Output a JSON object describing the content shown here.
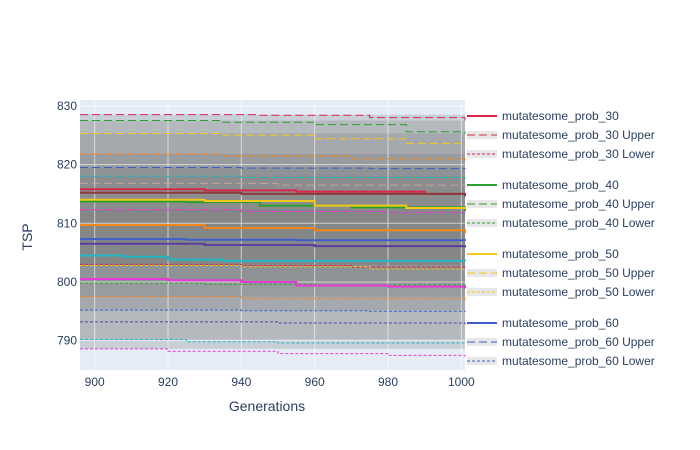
{
  "chart_data": {
    "type": "line",
    "xlabel": "Generations",
    "ylabel": "TSP",
    "xlim": [
      896,
      1001
    ],
    "ylim": [
      785,
      831
    ],
    "x_ticks": [
      900,
      920,
      940,
      960,
      980,
      1000
    ],
    "y_ticks": [
      790,
      800,
      810,
      820,
      830
    ],
    "x": [
      896,
      1001
    ],
    "grid": true,
    "legend_position": "right",
    "plot_background": "#e5ecf6",
    "band_fill": "rgba(120,120,120,0.25)",
    "series": [
      {
        "name": "mutatesome_prob_30",
        "color": "#d62748",
        "dash": "solid",
        "show_in_legend": true,
        "points": [
          [
            896,
            815.8
          ],
          [
            930,
            815.6
          ],
          [
            955,
            815.4
          ],
          [
            990,
            815.0
          ],
          [
            1001,
            814.9
          ]
        ]
      },
      {
        "name": "mutatesome_prob_30 Upper",
        "color": "#d62748",
        "dash": "dashed",
        "show_in_legend": true,
        "points": [
          [
            896,
            828.5
          ],
          [
            945,
            828.4
          ],
          [
            975,
            828.0
          ],
          [
            1001,
            827.5
          ]
        ]
      },
      {
        "name": "mutatesome_prob_30 Lower",
        "color": "#d62748",
        "dash": "dotted",
        "show_in_legend": true,
        "points": [
          [
            896,
            803.0
          ],
          [
            940,
            802.8
          ],
          [
            970,
            802.5
          ],
          [
            1001,
            802.3
          ]
        ]
      },
      {
        "name": "mutatesome_prob_40",
        "color": "#2ca02c",
        "dash": "solid",
        "show_in_legend": true,
        "points": [
          [
            896,
            813.7
          ],
          [
            925,
            813.6
          ],
          [
            945,
            813.0
          ],
          [
            970,
            812.7
          ],
          [
            1001,
            812.1
          ]
        ]
      },
      {
        "name": "mutatesome_prob_40 Upper",
        "color": "#2ca02c",
        "dash": "dashed",
        "show_in_legend": true,
        "points": [
          [
            896,
            827.5
          ],
          [
            935,
            827.2
          ],
          [
            960,
            826.8
          ],
          [
            985,
            825.6
          ],
          [
            1001,
            825.2
          ]
        ]
      },
      {
        "name": "mutatesome_prob_40 Lower",
        "color": "#2ca02c",
        "dash": "dotted",
        "show_in_legend": true,
        "points": [
          [
            896,
            799.8
          ],
          [
            930,
            799.6
          ],
          [
            960,
            799.5
          ],
          [
            1001,
            799.0
          ]
        ]
      },
      {
        "name": "mutatesome_prob_50",
        "color": "#f2c81b",
        "dash": "solid",
        "show_in_legend": true,
        "points": [
          [
            896,
            814.0
          ],
          [
            930,
            813.8
          ],
          [
            960,
            813.0
          ],
          [
            985,
            812.6
          ],
          [
            1001,
            812.4
          ]
        ]
      },
      {
        "name": "mutatesome_prob_50 Upper",
        "color": "#f2c81b",
        "dash": "dashed",
        "show_in_legend": true,
        "points": [
          [
            896,
            825.3
          ],
          [
            935,
            825.0
          ],
          [
            960,
            824.4
          ],
          [
            985,
            823.6
          ],
          [
            1001,
            823.2
          ]
        ]
      },
      {
        "name": "mutatesome_prob_50 Lower",
        "color": "#f2c81b",
        "dash": "dotted",
        "show_in_legend": true,
        "points": [
          [
            896,
            802.8
          ],
          [
            940,
            802.6
          ],
          [
            975,
            802.2
          ],
          [
            1001,
            802.0
          ]
        ]
      },
      {
        "name": "mutatesome_prob_60",
        "color": "#3e5fcb",
        "dash": "solid",
        "show_in_legend": true,
        "points": [
          [
            896,
            807.3
          ],
          [
            925,
            807.2
          ],
          [
            955,
            807.1
          ],
          [
            1001,
            807.0
          ]
        ]
      },
      {
        "name": "mutatesome_prob_60 Upper",
        "color": "#3e5fcb",
        "dash": "dashed",
        "show_in_legend": true,
        "points": [
          [
            896,
            819.5
          ],
          [
            940,
            819.4
          ],
          [
            975,
            819.3
          ],
          [
            1001,
            819.2
          ]
        ]
      },
      {
        "name": "mutatesome_prob_60 Lower",
        "color": "#3e5fcb",
        "dash": "dotted",
        "show_in_legend": true,
        "points": [
          [
            896,
            795.2
          ],
          [
            940,
            795.1
          ],
          [
            975,
            795.0
          ],
          [
            1001,
            794.9
          ]
        ]
      },
      {
        "name": "",
        "color": "#f58518",
        "dash": "solid",
        "show_in_legend": false,
        "points": [
          [
            896,
            809.7
          ],
          [
            930,
            809.2
          ],
          [
            960,
            808.8
          ],
          [
            1001,
            808.3
          ]
        ]
      },
      {
        "name": "",
        "color": "#f58518",
        "dash": "dashed",
        "show_in_legend": false,
        "points": [
          [
            896,
            821.8
          ],
          [
            935,
            821.5
          ],
          [
            970,
            821.0
          ],
          [
            1001,
            820.7
          ]
        ]
      },
      {
        "name": "",
        "color": "#f58518",
        "dash": "dotted",
        "show_in_legend": false,
        "points": [
          [
            896,
            797.5
          ],
          [
            940,
            797.2
          ],
          [
            1001,
            796.9
          ]
        ]
      },
      {
        "name": "",
        "color": "#1fb8c4",
        "dash": "solid",
        "show_in_legend": false,
        "points": [
          [
            896,
            804.5
          ],
          [
            908,
            804.3
          ],
          [
            920,
            803.8
          ],
          [
            935,
            803.6
          ],
          [
            1001,
            803.5
          ]
        ]
      },
      {
        "name": "",
        "color": "#1fb8c4",
        "dash": "dashed",
        "show_in_legend": false,
        "points": [
          [
            896,
            818.0
          ],
          [
            940,
            817.8
          ],
          [
            1001,
            817.6
          ]
        ]
      },
      {
        "name": "",
        "color": "#1fb8c4",
        "dash": "dotted",
        "show_in_legend": false,
        "points": [
          [
            896,
            790.2
          ],
          [
            925,
            789.8
          ],
          [
            950,
            789.6
          ],
          [
            1001,
            789.5
          ]
        ]
      },
      {
        "name": "",
        "color": "#e838d8",
        "dash": "solid",
        "show_in_legend": false,
        "points": [
          [
            896,
            800.5
          ],
          [
            920,
            800.3
          ],
          [
            940,
            800.0
          ],
          [
            955,
            799.4
          ],
          [
            980,
            799.2
          ],
          [
            1001,
            798.9
          ]
        ]
      },
      {
        "name": "",
        "color": "#e838d8",
        "dash": "dashed",
        "show_in_legend": false,
        "points": [
          [
            896,
            812.3
          ],
          [
            940,
            812.0
          ],
          [
            980,
            811.8
          ],
          [
            1001,
            811.7
          ]
        ]
      },
      {
        "name": "",
        "color": "#e838d8",
        "dash": "dotted",
        "show_in_legend": false,
        "points": [
          [
            896,
            788.6
          ],
          [
            920,
            788.2
          ],
          [
            950,
            787.8
          ],
          [
            980,
            787.5
          ],
          [
            1001,
            787.3
          ]
        ]
      },
      {
        "name": "",
        "color": "#8c3a3a",
        "dash": "solid",
        "show_in_legend": false,
        "points": [
          [
            896,
            815.2
          ],
          [
            940,
            815.0
          ],
          [
            1001,
            814.6
          ]
        ]
      },
      {
        "name": "",
        "color": "#5b3fa0",
        "dash": "solid",
        "show_in_legend": false,
        "points": [
          [
            896,
            806.5
          ],
          [
            930,
            806.3
          ],
          [
            960,
            806.1
          ],
          [
            1001,
            805.9
          ]
        ]
      },
      {
        "name": "",
        "color": "#5b3fa0",
        "dash": "dotted",
        "show_in_legend": false,
        "points": [
          [
            896,
            793.2
          ],
          [
            950,
            793.0
          ],
          [
            1001,
            792.8
          ]
        ]
      },
      {
        "name": "",
        "color": "#c5a3a3",
        "dash": "dashed",
        "show_in_legend": false,
        "points": [
          [
            896,
            816.8
          ],
          [
            950,
            816.5
          ],
          [
            1001,
            816.2
          ]
        ]
      }
    ],
    "bands": [
      {
        "color": "#d62748",
        "upper": 828.5,
        "lower": 803.0
      },
      {
        "color": "#2ca02c",
        "upper": 827.5,
        "lower": 799.8
      },
      {
        "color": "#f2c81b",
        "upper": 825.3,
        "lower": 802.8
      },
      {
        "color": "#3e5fcb",
        "upper": 819.5,
        "lower": 795.2
      },
      {
        "color": "#f58518",
        "upper": 821.8,
        "lower": 797.5
      },
      {
        "color": "#1fb8c4",
        "upper": 818.0,
        "lower": 790.2
      },
      {
        "color": "#e838d8",
        "upper": 812.3,
        "lower": 788.6
      }
    ]
  }
}
